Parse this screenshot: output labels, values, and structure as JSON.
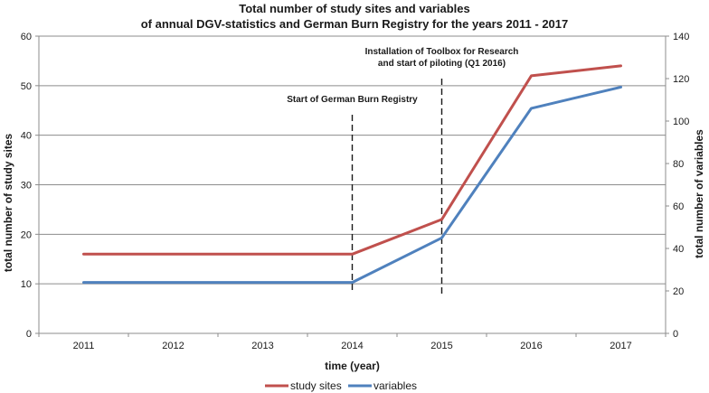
{
  "chart_data": {
    "type": "line",
    "title": [
      "Total number of study sites and variables",
      "of annual DGV-statistics and German Burn Registry for the years 2011 - 2017"
    ],
    "xlabel": "time (year)",
    "ylabel_left": "total number of study sites",
    "ylabel_right": "total number of variables",
    "categories": [
      "2011",
      "2012",
      "2013",
      "2014",
      "2015",
      "2016",
      "2017"
    ],
    "ylim_left": [
      0,
      60
    ],
    "yticks_left": [
      0,
      10,
      20,
      30,
      40,
      50,
      60
    ],
    "ylim_right": [
      0,
      140
    ],
    "yticks_right": [
      0,
      20,
      40,
      60,
      80,
      100,
      120,
      140
    ],
    "grid": true,
    "legend_position": "bottom",
    "series": [
      {
        "name": "study sites",
        "axis": "left",
        "color": "#c0504d",
        "values": [
          16,
          16,
          16,
          16,
          23,
          52,
          54
        ]
      },
      {
        "name": "variables",
        "axis": "right",
        "color": "#4f81bd",
        "values": [
          24,
          24,
          24,
          24,
          45,
          106,
          116
        ]
      }
    ],
    "annotations": [
      {
        "x": "2014",
        "text": [
          "Start of German Burn  Registry"
        ],
        "y_top": 103
      },
      {
        "x": "2015",
        "text": [
          "Installation of Toolbox for Research",
          "and start of piloting (Q1 2016)"
        ],
        "y_top": 120
      }
    ]
  }
}
